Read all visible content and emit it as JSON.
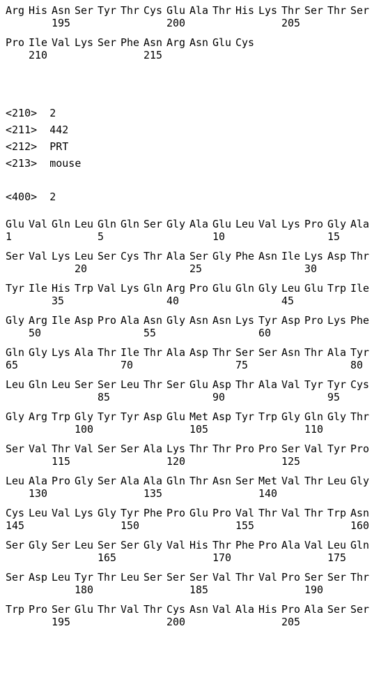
{
  "cell_width": 33.0,
  "res_fontsize": 15,
  "num_fontsize": 15,
  "font_family": "monospace",
  "background_color": "#ffffff",
  "text_color": "#000000",
  "top": {
    "rows": [
      {
        "residues": [
          "Arg",
          "His",
          "Asn",
          "Ser",
          "Tyr",
          "Thr",
          "Cys",
          "Glu",
          "Ala",
          "Thr",
          "His",
          "Lys",
          "Thr",
          "Ser",
          "Thr",
          "Ser"
        ],
        "numbers": {
          "2": "195",
          "7": "200",
          "12": "205"
        }
      },
      {
        "residues": [
          "Pro",
          "Ile",
          "Val",
          "Lys",
          "Ser",
          "Phe",
          "Asn",
          "Arg",
          "Asn",
          "Glu",
          "Cys"
        ],
        "numbers": {
          "1": "210",
          "6": "215"
        }
      }
    ]
  },
  "meta": [
    "<210>  2",
    "<211>  442",
    "<212>  PRT",
    "<213>  mouse",
    "",
    "<400>  2"
  ],
  "main": {
    "rows": [
      {
        "residues": [
          "Glu",
          "Val",
          "Gln",
          "Leu",
          "Gln",
          "Gln",
          "Ser",
          "Gly",
          "Ala",
          "Glu",
          "Leu",
          "Val",
          "Lys",
          "Pro",
          "Gly",
          "Ala"
        ],
        "numbers": {
          "0": "1",
          "4": "5",
          "9": "10",
          "14": "15"
        }
      },
      {
        "residues": [
          "Ser",
          "Val",
          "Lys",
          "Leu",
          "Ser",
          "Cys",
          "Thr",
          "Ala",
          "Ser",
          "Gly",
          "Phe",
          "Asn",
          "Ile",
          "Lys",
          "Asp",
          "Thr"
        ],
        "numbers": {
          "3": "20",
          "8": "25",
          "13": "30"
        }
      },
      {
        "residues": [
          "Tyr",
          "Ile",
          "His",
          "Trp",
          "Val",
          "Lys",
          "Gln",
          "Arg",
          "Pro",
          "Glu",
          "Gln",
          "Gly",
          "Leu",
          "Glu",
          "Trp",
          "Ile"
        ],
        "numbers": {
          "2": "35",
          "7": "40",
          "12": "45"
        }
      },
      {
        "residues": [
          "Gly",
          "Arg",
          "Ile",
          "Asp",
          "Pro",
          "Ala",
          "Asn",
          "Gly",
          "Asn",
          "Asn",
          "Lys",
          "Tyr",
          "Asp",
          "Pro",
          "Lys",
          "Phe"
        ],
        "numbers": {
          "1": "50",
          "6": "55",
          "11": "60"
        }
      },
      {
        "residues": [
          "Gln",
          "Gly",
          "Lys",
          "Ala",
          "Thr",
          "Ile",
          "Thr",
          "Ala",
          "Asp",
          "Thr",
          "Ser",
          "Ser",
          "Asn",
          "Thr",
          "Ala",
          "Tyr"
        ],
        "numbers": {
          "0": "65",
          "5": "70",
          "10": "75",
          "15": "80"
        }
      },
      {
        "residues": [
          "Leu",
          "Gln",
          "Leu",
          "Ser",
          "Ser",
          "Leu",
          "Thr",
          "Ser",
          "Glu",
          "Asp",
          "Thr",
          "Ala",
          "Val",
          "Tyr",
          "Tyr",
          "Cys"
        ],
        "numbers": {
          "4": "85",
          "9": "90",
          "14": "95"
        }
      },
      {
        "residues": [
          "Gly",
          "Arg",
          "Trp",
          "Gly",
          "Tyr",
          "Tyr",
          "Asp",
          "Glu",
          "Met",
          "Asp",
          "Tyr",
          "Trp",
          "Gly",
          "Gln",
          "Gly",
          "Thr"
        ],
        "numbers": {
          "3": "100",
          "8": "105",
          "13": "110"
        }
      },
      {
        "residues": [
          "Ser",
          "Val",
          "Thr",
          "Val",
          "Ser",
          "Ser",
          "Ala",
          "Lys",
          "Thr",
          "Thr",
          "Pro",
          "Pro",
          "Ser",
          "Val",
          "Tyr",
          "Pro"
        ],
        "numbers": {
          "2": "115",
          "7": "120",
          "12": "125"
        }
      },
      {
        "residues": [
          "Leu",
          "Ala",
          "Pro",
          "Gly",
          "Ser",
          "Ala",
          "Ala",
          "Gln",
          "Thr",
          "Asn",
          "Ser",
          "Met",
          "Val",
          "Thr",
          "Leu",
          "Gly"
        ],
        "numbers": {
          "1": "130",
          "6": "135",
          "11": "140"
        }
      },
      {
        "residues": [
          "Cys",
          "Leu",
          "Val",
          "Lys",
          "Gly",
          "Tyr",
          "Phe",
          "Pro",
          "Glu",
          "Pro",
          "Val",
          "Thr",
          "Val",
          "Thr",
          "Trp",
          "Asn"
        ],
        "numbers": {
          "0": "145",
          "5": "150",
          "10": "155",
          "15": "160"
        }
      },
      {
        "residues": [
          "Ser",
          "Gly",
          "Ser",
          "Leu",
          "Ser",
          "Ser",
          "Gly",
          "Val",
          "His",
          "Thr",
          "Phe",
          "Pro",
          "Ala",
          "Val",
          "Leu",
          "Gln"
        ],
        "numbers": {
          "4": "165",
          "9": "170",
          "14": "175"
        }
      },
      {
        "residues": [
          "Ser",
          "Asp",
          "Leu",
          "Tyr",
          "Thr",
          "Leu",
          "Ser",
          "Ser",
          "Ser",
          "Val",
          "Thr",
          "Val",
          "Pro",
          "Ser",
          "Ser",
          "Thr"
        ],
        "numbers": {
          "3": "180",
          "8": "185",
          "13": "190"
        }
      },
      {
        "residues": [
          "Trp",
          "Pro",
          "Ser",
          "Glu",
          "Thr",
          "Val",
          "Thr",
          "Cys",
          "Asn",
          "Val",
          "Ala",
          "His",
          "Pro",
          "Ala",
          "Ser",
          "Ser"
        ],
        "numbers": {
          "2": "195",
          "7": "200",
          "12": "205"
        }
      }
    ]
  }
}
